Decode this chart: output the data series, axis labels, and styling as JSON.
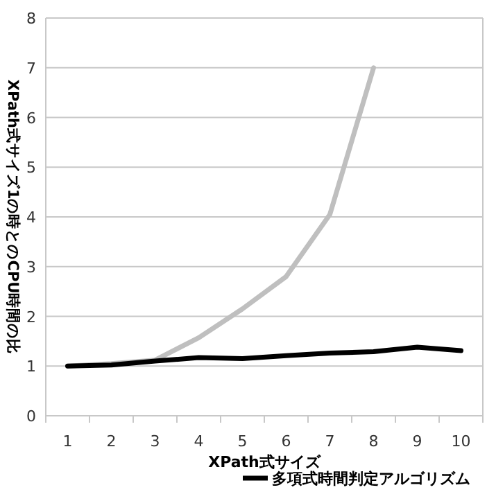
{
  "chart_data": {
    "type": "line",
    "xlabel": "XPath式サイズ",
    "ylabel": "XPath式サイズ1の時とのCPU時間の比",
    "categories": [
      "1",
      "2",
      "3",
      "4",
      "5",
      "6",
      "7",
      "8",
      "9",
      "10"
    ],
    "series": [
      {
        "color": "#bfbfbf",
        "values": [
          1.0,
          1.05,
          1.12,
          1.57,
          2.15,
          2.8,
          4.05,
          7.0,
          null,
          null
        ]
      },
      {
        "name": "多項式時間判定アルゴリズム",
        "color": "#000000",
        "values": [
          1.0,
          1.02,
          1.1,
          1.17,
          1.15,
          1.21,
          1.26,
          1.29,
          1.38,
          1.31
        ]
      }
    ],
    "ylim": [
      0,
      8
    ],
    "yticks": [
      0,
      1,
      2,
      3,
      4,
      5,
      6,
      7,
      8
    ],
    "grid": "y",
    "legend": "bottom",
    "marker": "none",
    "line_style": "solid"
  }
}
